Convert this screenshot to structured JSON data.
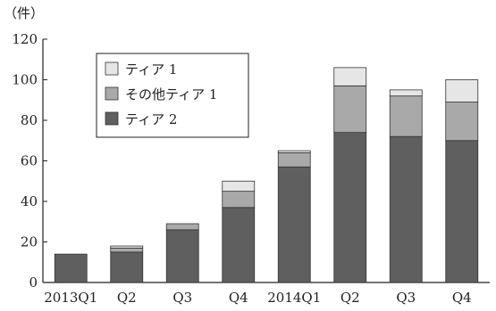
{
  "chart_data": {
    "type": "bar",
    "stacked": true,
    "y_unit_label": "（件）",
    "categories": [
      "2013Q1",
      "Q2",
      "Q3",
      "Q4",
      "2014Q1",
      "Q2",
      "Q3",
      "Q4"
    ],
    "series": [
      {
        "name": "ティア 2",
        "color": "#5f5f5f",
        "values": [
          14,
          15,
          26,
          37,
          57,
          74,
          72,
          70
        ]
      },
      {
        "name": "その他ティア 1",
        "color": "#a9a9a9",
        "values": [
          0,
          2,
          3,
          8,
          7,
          23,
          20,
          19
        ]
      },
      {
        "name": "ティア 1",
        "color": "#e6e6e6",
        "values": [
          0,
          1,
          0,
          5,
          1,
          9,
          3,
          11
        ]
      }
    ],
    "legend_order": [
      "ティア 1",
      "その他ティア 1",
      "ティア 2"
    ],
    "legend_position": "top-left",
    "ylim": [
      0,
      120
    ],
    "yticks": [
      0,
      20,
      40,
      60,
      80,
      100,
      120
    ],
    "grid": false
  }
}
